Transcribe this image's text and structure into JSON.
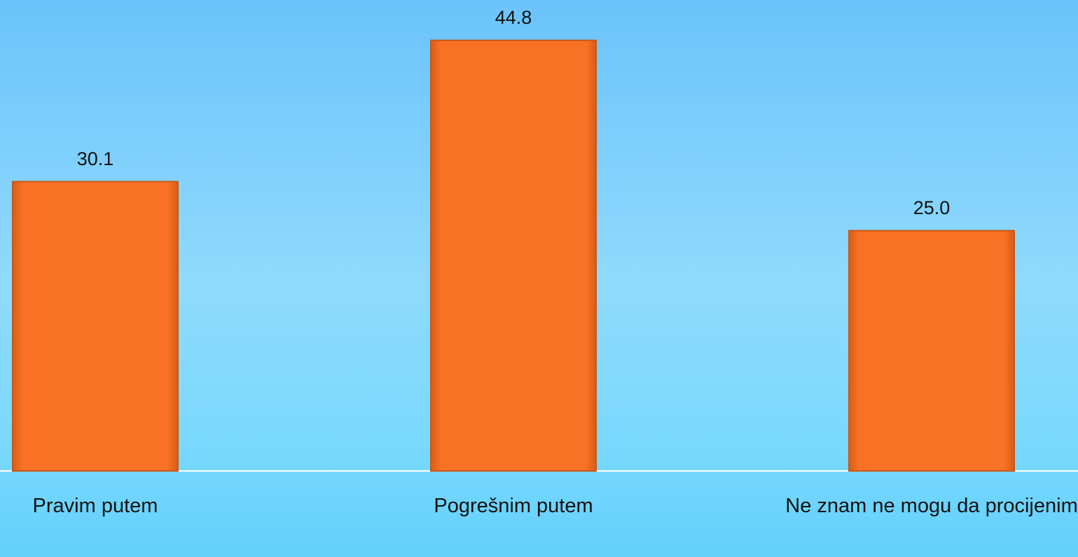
{
  "chart_data": {
    "type": "bar",
    "categories": [
      "Pravim putem",
      "Pogrešnim putem",
      "Ne znam ne mogu da procijenim"
    ],
    "values": [
      30.1,
      44.8,
      25.0
    ],
    "value_labels": [
      "30.1",
      "44.8",
      "25.0"
    ],
    "color": "#f97124",
    "ylim": [
      0,
      49
    ]
  }
}
